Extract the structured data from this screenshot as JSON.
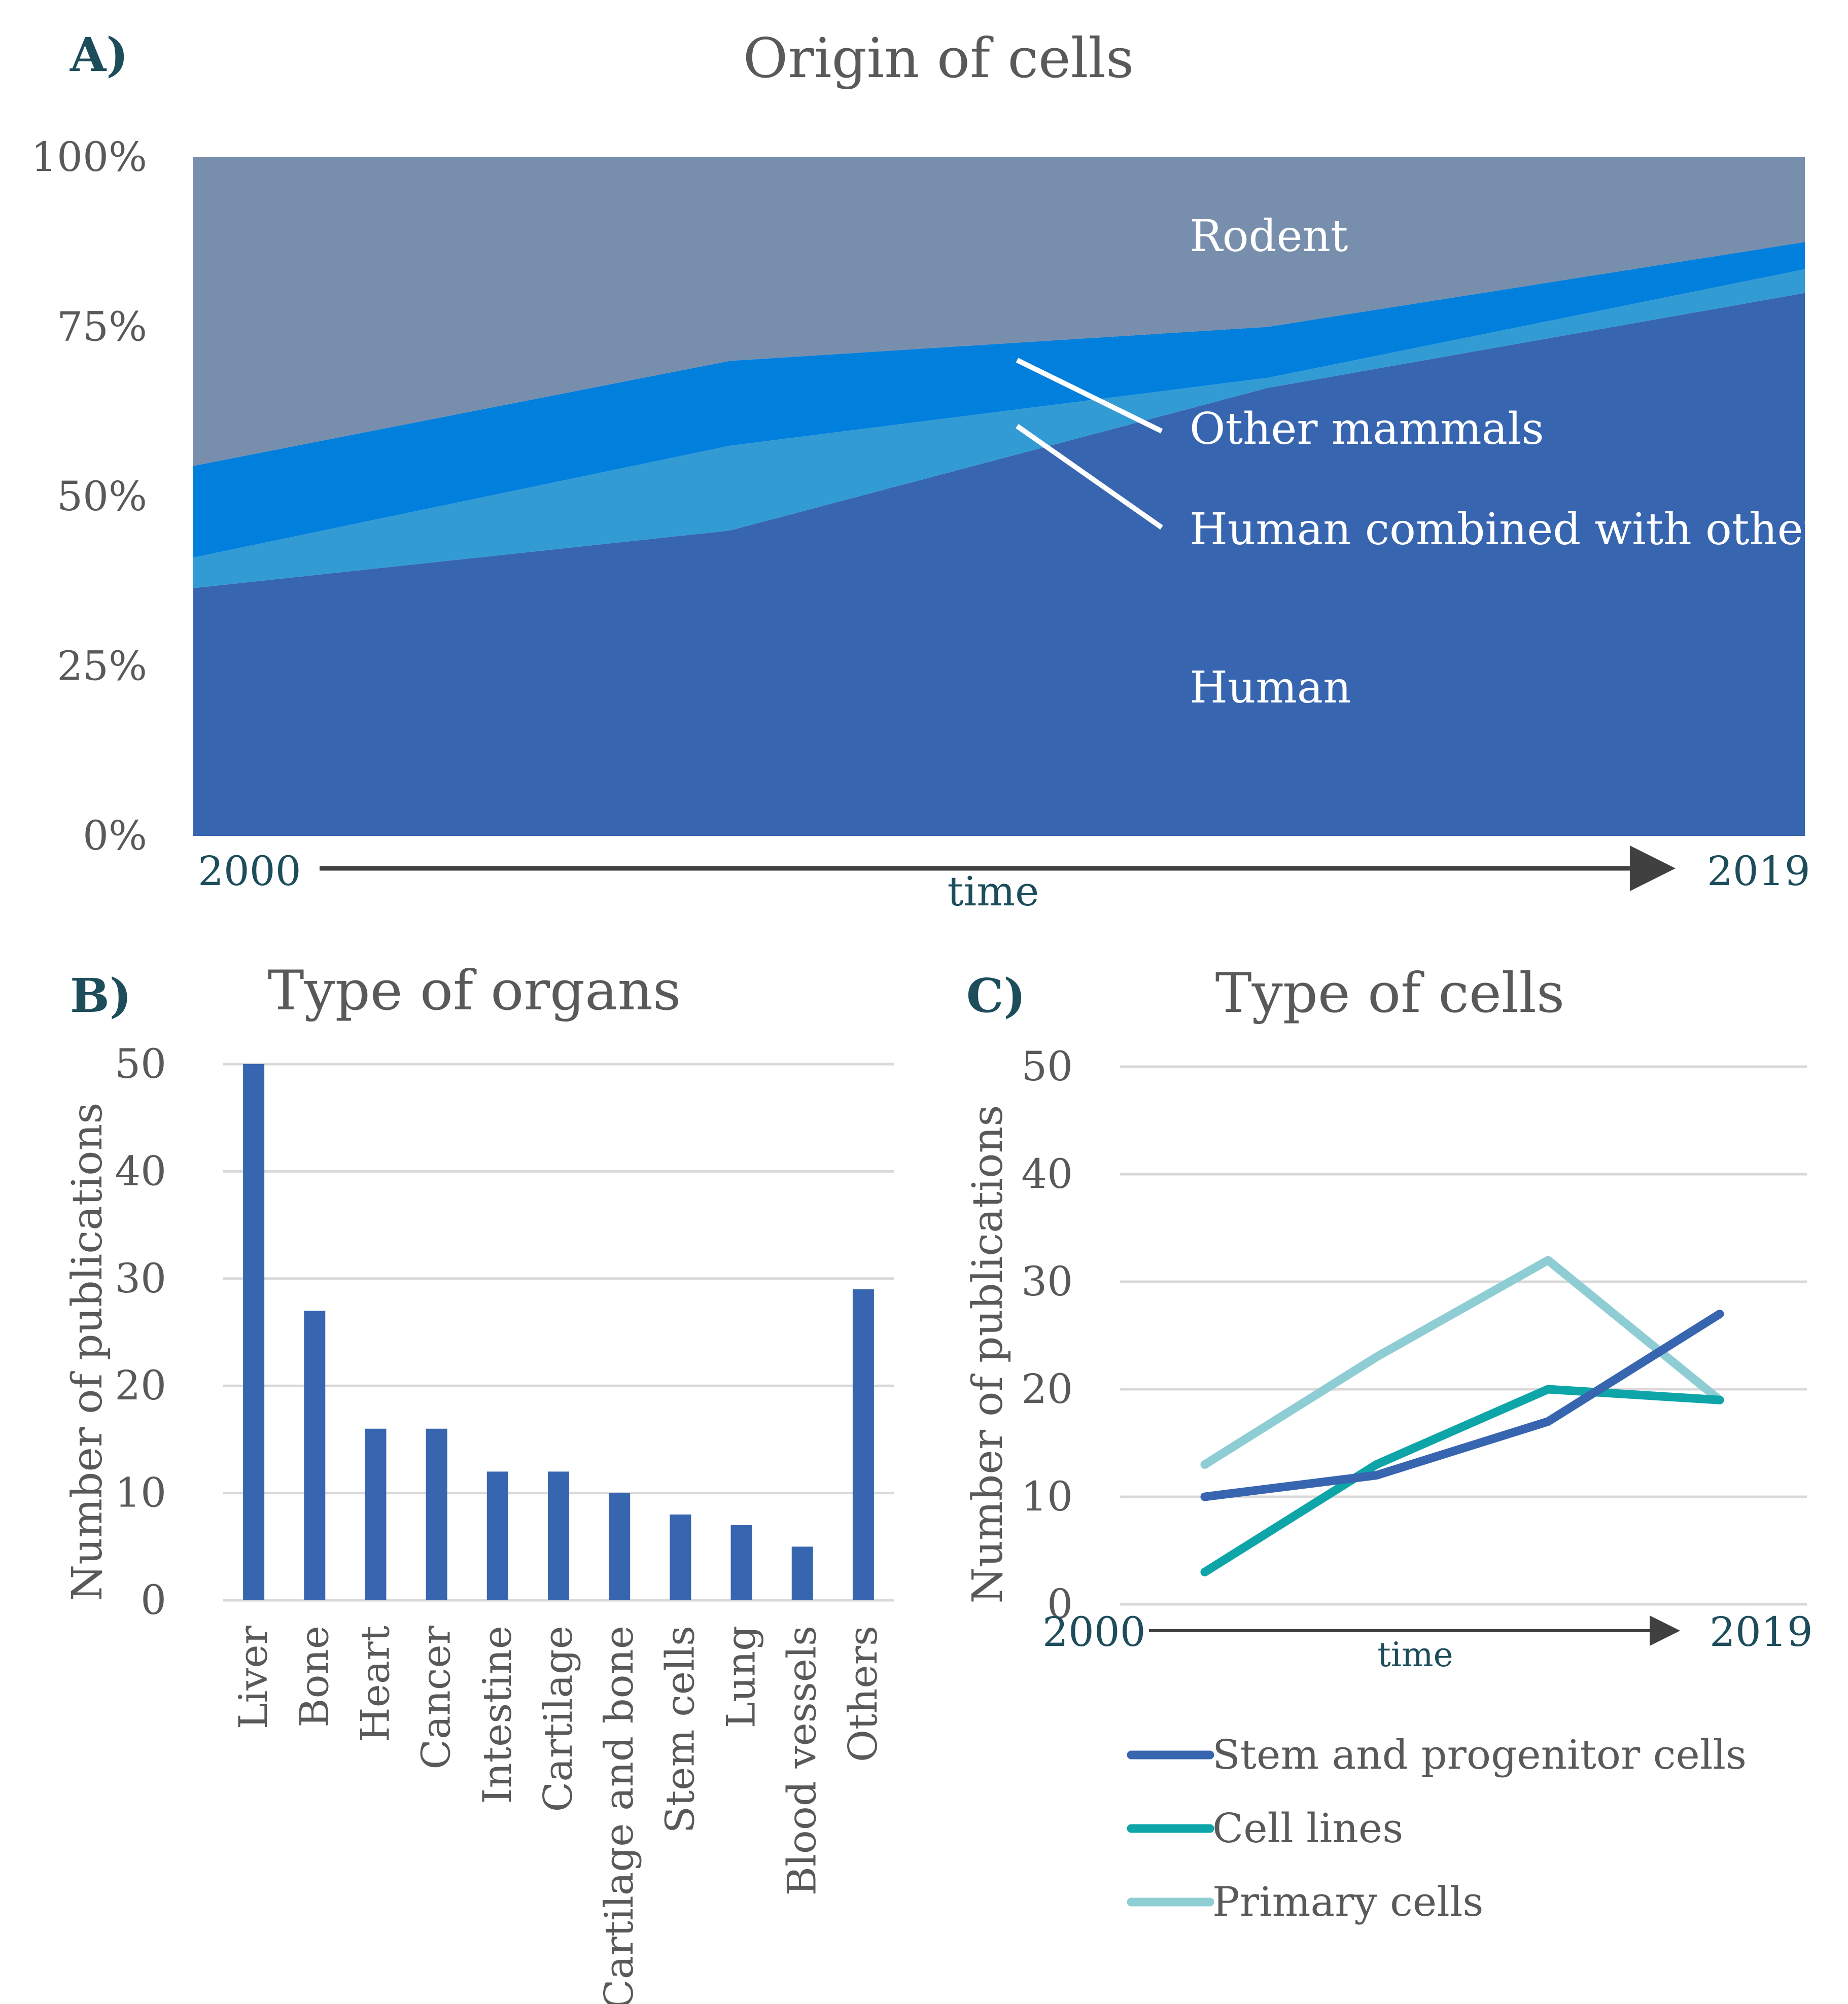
{
  "figure": {
    "description_hidden": false
  },
  "panel_a": {
    "letter": "A)",
    "area_labels": {
      "rodent": "Rodent",
      "other_mammals": "Other mammals",
      "human_combined": "Human combined with others",
      "human": "Human"
    },
    "x_start": "2000",
    "x_end": "2019",
    "x_axis_label": "time"
  },
  "panel_b": {
    "letter": "B)"
  },
  "panel_c": {
    "letter": "C)",
    "x_start": "2000",
    "x_end": "2019",
    "x_axis_label": "time"
  },
  "colors": {
    "human": "#3765B0",
    "human_combined": "#339BD4",
    "other_mammals": "#007FDD",
    "rodent": "#778FAD",
    "bar": "#3765B0",
    "stem": "#3765B0",
    "cell_lines": "#0EA5A8",
    "primary": "#8FCDD5",
    "panel_letter": "#1D4D5B",
    "title": "#595959",
    "axis_text": "#595959",
    "grid": "#D9D9D9",
    "arrow": "#404040"
  },
  "chart_data": [
    {
      "type": "area",
      "stacked": "percent",
      "title": "Origin of cells",
      "xlabel": "time",
      "ylabel": "",
      "x": [
        0,
        1,
        2,
        3
      ],
      "y_ticks": [
        "0%",
        "25%",
        "50%",
        "75%",
        "100%"
      ],
      "ylim": [
        0,
        100
      ],
      "series": [
        {
          "name": "Human",
          "values": [
            36.5,
            45,
            66,
            80
          ]
        },
        {
          "name": "Human combined with others",
          "values": [
            4.5,
            12.5,
            1.5,
            3.5
          ]
        },
        {
          "name": "Other mammals",
          "values": [
            13.5,
            12.5,
            7.5,
            4
          ]
        },
        {
          "name": "Rodent",
          "values": [
            45.5,
            30,
            25,
            12.5
          ]
        }
      ]
    },
    {
      "type": "bar",
      "title": "Type of organs",
      "xlabel": "",
      "ylabel": "Number of publications",
      "ylim": [
        0,
        50
      ],
      "y_ticks": [
        "0",
        "10",
        "20",
        "30",
        "40",
        "50"
      ],
      "categories": [
        "Liver",
        "Bone",
        "Heart",
        "Cancer",
        "Intestine",
        "Cartilage",
        "Cartilage and bone",
        "Stem cells",
        "Lung",
        "Blood vessels",
        "Others"
      ],
      "values": [
        50,
        27,
        16,
        16,
        12,
        12,
        10,
        8,
        7,
        5,
        29
      ]
    },
    {
      "type": "line",
      "title": "Type of cells",
      "xlabel": "time",
      "ylabel": "Number of publications",
      "ylim": [
        0,
        50
      ],
      "y_ticks": [
        "0",
        "10",
        "20",
        "30",
        "40",
        "50"
      ],
      "x": [
        0,
        1,
        2,
        3
      ],
      "series": [
        {
          "name": "Stem and progenitor cells",
          "values": [
            10,
            12,
            17,
            27
          ]
        },
        {
          "name": "Cell lines",
          "values": [
            3,
            13,
            20,
            19
          ]
        },
        {
          "name": "Primary cells",
          "values": [
            13,
            23,
            32,
            19
          ]
        }
      ]
    }
  ]
}
